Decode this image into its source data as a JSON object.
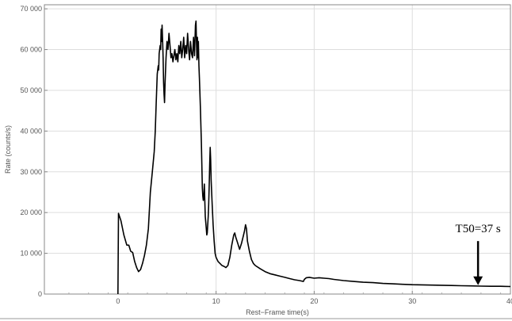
{
  "chart_data": {
    "type": "line",
    "xlabel": "Rest−Frame time(s)",
    "ylabel": "Rate (counts/s)",
    "xlim": [
      -7.5,
      40
    ],
    "ylim": [
      0,
      71000
    ],
    "xticks": [
      0,
      10,
      20,
      30,
      40
    ],
    "xtick_labels": [
      "0",
      "10",
      "20",
      "30",
      "40"
    ],
    "yticks": [
      0,
      10000,
      20000,
      30000,
      40000,
      50000,
      60000,
      70000
    ],
    "ytick_labels": [
      "0",
      "10 000",
      "20 000",
      "30 000",
      "40 000",
      "50 000",
      "60 000",
      "70 000"
    ],
    "grid": true,
    "series": [
      {
        "color": "#000000",
        "points": [
          [
            0.0,
            0
          ],
          [
            0.05,
            19800
          ],
          [
            0.3,
            18000
          ],
          [
            0.6,
            14500
          ],
          [
            0.9,
            12000
          ],
          [
            1.1,
            12000
          ],
          [
            1.3,
            10500
          ],
          [
            1.5,
            10200
          ],
          [
            1.7,
            8000
          ],
          [
            1.9,
            6500
          ],
          [
            2.1,
            5500
          ],
          [
            2.3,
            6000
          ],
          [
            2.5,
            7500
          ],
          [
            2.7,
            9500
          ],
          [
            2.9,
            12000
          ],
          [
            3.1,
            16000
          ],
          [
            3.3,
            25000
          ],
          [
            3.5,
            30000
          ],
          [
            3.7,
            35000
          ],
          [
            3.8,
            40000
          ],
          [
            3.9,
            47000
          ],
          [
            4.0,
            54000
          ],
          [
            4.1,
            56000
          ],
          [
            4.15,
            55000
          ],
          [
            4.2,
            59000
          ],
          [
            4.3,
            61000
          ],
          [
            4.35,
            60000
          ],
          [
            4.4,
            65000
          ],
          [
            4.45,
            62000
          ],
          [
            4.5,
            66000
          ],
          [
            4.55,
            62000
          ],
          [
            4.6,
            58000
          ],
          [
            4.65,
            52000
          ],
          [
            4.7,
            49000
          ],
          [
            4.75,
            47000
          ],
          [
            4.8,
            52000
          ],
          [
            4.9,
            58000
          ],
          [
            5.0,
            62000
          ],
          [
            5.1,
            60000
          ],
          [
            5.2,
            64000
          ],
          [
            5.3,
            61000
          ],
          [
            5.4,
            58000
          ],
          [
            5.5,
            59000
          ],
          [
            5.6,
            57000
          ],
          [
            5.7,
            58500
          ],
          [
            5.8,
            60000
          ],
          [
            5.9,
            57500
          ],
          [
            6.0,
            59000
          ],
          [
            6.1,
            57000
          ],
          [
            6.2,
            61000
          ],
          [
            6.3,
            59000
          ],
          [
            6.4,
            62000
          ],
          [
            6.5,
            58000
          ],
          [
            6.6,
            60000
          ],
          [
            6.7,
            63000
          ],
          [
            6.8,
            58000
          ],
          [
            6.9,
            61000
          ],
          [
            7.0,
            59000
          ],
          [
            7.1,
            64000
          ],
          [
            7.2,
            60000
          ],
          [
            7.3,
            57500
          ],
          [
            7.4,
            62000
          ],
          [
            7.5,
            59000
          ],
          [
            7.6,
            58000
          ],
          [
            7.7,
            63000
          ],
          [
            7.8,
            58500
          ],
          [
            7.9,
            66000
          ],
          [
            7.95,
            67000
          ],
          [
            8.0,
            62000
          ],
          [
            8.05,
            57500
          ],
          [
            8.1,
            63000
          ],
          [
            8.15,
            58000
          ],
          [
            8.2,
            62000
          ],
          [
            8.25,
            56000
          ],
          [
            8.3,
            53000
          ],
          [
            8.4,
            46000
          ],
          [
            8.5,
            37000
          ],
          [
            8.6,
            26000
          ],
          [
            8.65,
            24000
          ],
          [
            8.7,
            23000
          ],
          [
            8.75,
            24000
          ],
          [
            8.8,
            27000
          ],
          [
            8.85,
            23000
          ],
          [
            8.9,
            19000
          ],
          [
            9.0,
            16000
          ],
          [
            9.05,
            14500
          ],
          [
            9.1,
            15000
          ],
          [
            9.15,
            17000
          ],
          [
            9.2,
            19000
          ],
          [
            9.25,
            22000
          ],
          [
            9.3,
            27000
          ],
          [
            9.35,
            32000
          ],
          [
            9.4,
            36000
          ],
          [
            9.45,
            33000
          ],
          [
            9.5,
            28000
          ],
          [
            9.6,
            22000
          ],
          [
            9.7,
            17000
          ],
          [
            9.8,
            13000
          ],
          [
            9.9,
            10000
          ],
          [
            10.0,
            9000
          ],
          [
            10.2,
            8000
          ],
          [
            10.4,
            7500
          ],
          [
            10.6,
            7000
          ],
          [
            10.8,
            6800
          ],
          [
            11.0,
            6500
          ],
          [
            11.2,
            7000
          ],
          [
            11.4,
            9000
          ],
          [
            11.6,
            12000
          ],
          [
            11.8,
            14500
          ],
          [
            11.9,
            15000
          ],
          [
            12.0,
            14000
          ],
          [
            12.2,
            12500
          ],
          [
            12.4,
            11000
          ],
          [
            12.6,
            12500
          ],
          [
            12.8,
            14500
          ],
          [
            12.9,
            15500
          ],
          [
            13.0,
            17000
          ],
          [
            13.1,
            16000
          ],
          [
            13.2,
            13000
          ],
          [
            13.4,
            10500
          ],
          [
            13.6,
            8500
          ],
          [
            13.8,
            7500
          ],
          [
            14.0,
            7000
          ],
          [
            14.5,
            6200
          ],
          [
            15.0,
            5500
          ],
          [
            15.5,
            5000
          ],
          [
            16.0,
            4700
          ],
          [
            16.5,
            4400
          ],
          [
            17.0,
            4100
          ],
          [
            17.5,
            3800
          ],
          [
            18.0,
            3500
          ],
          [
            18.5,
            3300
          ],
          [
            18.9,
            3100
          ],
          [
            19.0,
            3600
          ],
          [
            19.2,
            4000
          ],
          [
            19.5,
            4100
          ],
          [
            20.0,
            3900
          ],
          [
            20.5,
            4000
          ],
          [
            21.0,
            3900
          ],
          [
            21.5,
            3800
          ],
          [
            22.0,
            3600
          ],
          [
            23.0,
            3300
          ],
          [
            24.0,
            3100
          ],
          [
            25.0,
            2900
          ],
          [
            26.0,
            2800
          ],
          [
            27.0,
            2600
          ],
          [
            28.0,
            2500
          ],
          [
            29.0,
            2400
          ],
          [
            30.0,
            2300
          ],
          [
            31.0,
            2250
          ],
          [
            32.0,
            2200
          ],
          [
            33.0,
            2150
          ],
          [
            34.0,
            2100
          ],
          [
            35.0,
            2050
          ],
          [
            36.0,
            2000
          ],
          [
            37.0,
            1950
          ],
          [
            38.0,
            1900
          ],
          [
            39.0,
            1900
          ],
          [
            40.0,
            1850
          ]
        ]
      }
    ],
    "annotations": [
      {
        "text": "T50=37 s",
        "arrow_x": 36.7,
        "arrow_y_top": 13000,
        "arrow_y_bottom": 2200
      }
    ]
  }
}
